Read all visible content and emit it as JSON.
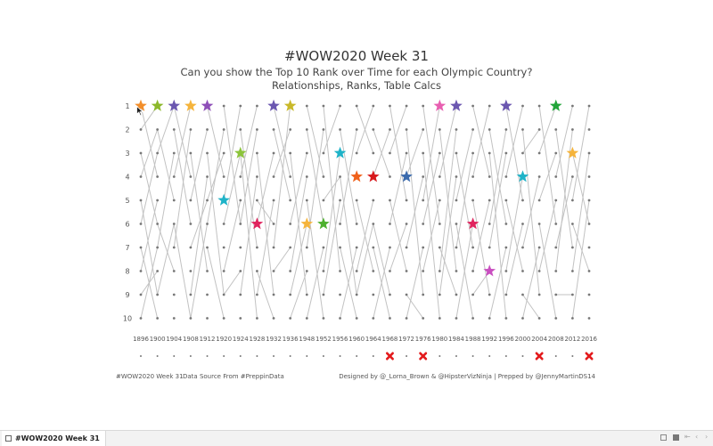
{
  "title": "#WOW2020 Week 31",
  "subtitle_line1": "Can you show the Top 10 Rank over Time for each Olympic Country?",
  "subtitle_line2": "Relationships, Ranks, Table Calcs",
  "footer": {
    "left": "#WOW2020 Week 31",
    "source": "Data Source From #PreppinData",
    "credits": "Designed by @_Lorna_Brown & @HipsterVizNinja | Prepped by @JennyMartinDS14"
  },
  "tab": {
    "label": "#WOW2020 Week 31"
  },
  "tab_controls": [
    "grid-view-icon",
    "filmstrip-view-icon",
    "first-page-icon",
    "previous-page-icon",
    "next-page-icon"
  ],
  "chart_data": {
    "type": "bump",
    "x": [
      1896,
      1900,
      1904,
      1908,
      1912,
      1920,
      1924,
      1928,
      1932,
      1936,
      1948,
      1952,
      1956,
      1960,
      1964,
      1968,
      1972,
      1976,
      1980,
      1984,
      1988,
      1992,
      1996,
      2000,
      2004,
      2008,
      2012,
      2016
    ],
    "y_ticks": [
      1,
      2,
      3,
      4,
      5,
      6,
      7,
      8,
      9,
      10
    ],
    "ylim": [
      1,
      10
    ],
    "y_reversed": true,
    "grid": false,
    "rank_marks": [
      [
        1,
        1,
        1,
        1,
        1,
        1,
        1,
        1,
        1,
        1,
        1,
        1,
        1,
        1,
        1,
        1,
        1,
        1,
        1,
        1,
        1,
        1,
        1,
        1,
        1,
        1,
        1,
        1
      ],
      [
        2,
        2,
        2,
        2,
        2,
        2,
        2,
        2,
        2,
        2,
        2,
        2,
        2,
        2,
        2,
        2,
        2,
        2,
        2,
        2,
        2,
        2,
        2,
        2,
        2,
        2,
        2,
        2
      ],
      [
        3,
        3,
        3,
        3,
        3,
        3,
        3,
        3,
        3,
        3,
        3,
        3,
        3,
        3,
        3,
        3,
        3,
        3,
        3,
        3,
        3,
        3,
        3,
        3,
        3,
        3,
        3,
        3
      ],
      [
        4,
        4,
        4,
        4,
        4,
        4,
        4,
        4,
        4,
        4,
        4,
        4,
        4,
        4,
        4,
        4,
        4,
        4,
        4,
        4,
        4,
        4,
        4,
        4,
        4,
        4,
        4,
        4
      ],
      [
        5,
        5,
        5,
        5,
        5,
        5,
        5,
        5,
        5,
        5,
        5,
        5,
        5,
        5,
        5,
        5,
        5,
        5,
        5,
        5,
        5,
        5,
        5,
        5,
        5,
        5,
        5,
        5
      ],
      [
        6,
        6,
        6,
        6,
        6,
        6,
        6,
        6,
        6,
        6,
        6,
        6,
        6,
        6,
        6,
        6,
        6,
        6,
        6,
        6,
        6,
        6,
        6,
        6,
        6,
        6,
        6,
        6
      ],
      [
        7,
        7,
        7,
        7,
        7,
        7,
        7,
        7,
        7,
        7,
        7,
        7,
        7,
        7,
        7,
        7,
        7,
        7,
        7,
        7,
        7,
        7,
        7,
        7,
        7,
        7,
        7,
        7
      ],
      [
        8,
        8,
        8,
        8,
        8,
        8,
        8,
        8,
        8,
        8,
        8,
        8,
        8,
        8,
        8,
        8,
        8,
        8,
        8,
        8,
        8,
        8,
        8,
        8,
        8,
        8,
        8,
        8
      ],
      [
        9,
        9,
        9,
        9,
        9,
        9,
        9,
        9,
        9,
        9,
        9,
        9,
        9,
        9,
        9,
        9,
        9,
        9,
        9,
        9,
        9,
        9,
        9,
        9,
        9,
        9,
        9,
        9
      ],
      [
        10,
        10,
        10,
        10,
        10,
        10,
        10,
        10,
        10,
        10,
        10,
        10,
        10,
        10,
        10,
        10,
        10,
        10,
        10,
        10,
        10,
        10,
        10,
        10,
        10,
        10,
        10,
        10
      ]
    ],
    "connector_lines": [
      [
        1896,
        1,
        1900,
        4
      ],
      [
        1896,
        2,
        1900,
        1
      ],
      [
        1896,
        3,
        1900,
        6
      ],
      [
        1896,
        4,
        1900,
        2
      ],
      [
        1896,
        5,
        1900,
        9
      ],
      [
        1896,
        6,
        1900,
        3
      ],
      [
        1896,
        7,
        1900,
        10
      ],
      [
        1896,
        8,
        1900,
        5
      ],
      [
        1896,
        9,
        1900,
        8
      ],
      [
        1896,
        10,
        1900,
        7
      ],
      [
        1900,
        2,
        1904,
        5
      ],
      [
        1900,
        3,
        1904,
        1
      ],
      [
        1900,
        6,
        1904,
        8
      ],
      [
        1900,
        7,
        1904,
        3
      ],
      [
        1900,
        9,
        1904,
        6
      ],
      [
        1904,
        1,
        1908,
        4
      ],
      [
        1904,
        2,
        1908,
        6
      ],
      [
        1904,
        4,
        1908,
        1
      ],
      [
        1904,
        6,
        1908,
        10
      ],
      [
        1904,
        7,
        1908,
        2
      ],
      [
        1908,
        3,
        1912,
        8
      ],
      [
        1908,
        5,
        1912,
        2
      ],
      [
        1908,
        7,
        1912,
        5
      ],
      [
        1908,
        9,
        1912,
        4
      ],
      [
        1908,
        10,
        1912,
        6
      ],
      [
        1912,
        1,
        1920,
        4
      ],
      [
        1912,
        3,
        1920,
        9
      ],
      [
        1912,
        5,
        1920,
        3
      ],
      [
        1912,
        6,
        1920,
        2
      ],
      [
        1912,
        7,
        1920,
        10
      ],
      [
        1920,
        1,
        1924,
        6
      ],
      [
        1920,
        5,
        1924,
        1
      ],
      [
        1920,
        6,
        1924,
        3
      ],
      [
        1920,
        8,
        1924,
        5
      ],
      [
        1920,
        9,
        1924,
        8
      ],
      [
        1924,
        2,
        1928,
        7
      ],
      [
        1924,
        3,
        1928,
        10
      ],
      [
        1924,
        4,
        1928,
        1
      ],
      [
        1924,
        6,
        1928,
        2
      ],
      [
        1924,
        9,
        1928,
        4
      ],
      [
        1928,
        3,
        1932,
        9
      ],
      [
        1928,
        5,
        1932,
        6
      ],
      [
        1928,
        6,
        1932,
        3
      ],
      [
        1928,
        8,
        1932,
        10
      ],
      [
        1928,
        9,
        1932,
        5
      ],
      [
        1932,
        1,
        1936,
        4
      ],
      [
        1932,
        2,
        1936,
        5
      ],
      [
        1932,
        4,
        1936,
        2
      ],
      [
        1932,
        7,
        1936,
        1
      ],
      [
        1932,
        8,
        1936,
        7
      ],
      [
        1936,
        3,
        1948,
        9
      ],
      [
        1936,
        6,
        1948,
        3
      ],
      [
        1936,
        8,
        1948,
        4
      ],
      [
        1936,
        9,
        1948,
        6
      ],
      [
        1936,
        10,
        1948,
        8
      ],
      [
        1948,
        1,
        1952,
        4
      ],
      [
        1948,
        2,
        1952,
        6
      ],
      [
        1948,
        5,
        1952,
        10
      ],
      [
        1948,
        7,
        1952,
        2
      ],
      [
        1948,
        10,
        1952,
        7
      ],
      [
        1952,
        1,
        1956,
        8
      ],
      [
        1952,
        3,
        1956,
        1
      ],
      [
        1952,
        5,
        1956,
        4
      ],
      [
        1952,
        8,
        1956,
        3
      ],
      [
        1952,
        9,
        1956,
        5
      ],
      [
        1956,
        2,
        1960,
        6
      ],
      [
        1956,
        4,
        1960,
        9
      ],
      [
        1956,
        6,
        1960,
        2
      ],
      [
        1956,
        7,
        1960,
        10
      ],
      [
        1956,
        10,
        1960,
        7
      ],
      [
        1960,
        1,
        1964,
        3
      ],
      [
        1960,
        3,
        1964,
        1
      ],
      [
        1960,
        5,
        1964,
        8
      ],
      [
        1960,
        8,
        1964,
        5
      ],
      [
        1960,
        9,
        1964,
        6
      ],
      [
        1964,
        2,
        1968,
        4
      ],
      [
        1964,
        4,
        1968,
        2
      ],
      [
        1964,
        6,
        1968,
        9
      ],
      [
        1964,
        7,
        1968,
        10
      ],
      [
        1964,
        10,
        1968,
        7
      ],
      [
        1968,
        1,
        1972,
        5
      ],
      [
        1968,
        3,
        1972,
        1
      ],
      [
        1968,
        5,
        1972,
        8
      ],
      [
        1968,
        6,
        1972,
        3
      ],
      [
        1968,
        8,
        1972,
        6
      ],
      [
        1972,
        2,
        1976,
        9
      ],
      [
        1972,
        4,
        1976,
        2
      ],
      [
        1972,
        7,
        1976,
        4
      ],
      [
        1972,
        9,
        1976,
        10
      ],
      [
        1972,
        10,
        1976,
        7
      ],
      [
        1976,
        1,
        1980,
        6
      ],
      [
        1976,
        3,
        1980,
        10
      ],
      [
        1976,
        5,
        1980,
        1
      ],
      [
        1976,
        6,
        1980,
        3
      ],
      [
        1976,
        8,
        1980,
        5
      ],
      [
        1980,
        2,
        1984,
        8
      ],
      [
        1980,
        4,
        1984,
        1
      ],
      [
        1980,
        7,
        1984,
        9
      ],
      [
        1980,
        8,
        1984,
        2
      ],
      [
        1980,
        9,
        1984,
        4
      ],
      [
        1984,
        3,
        1988,
        7
      ],
      [
        1984,
        5,
        1988,
        2
      ],
      [
        1984,
        6,
        1988,
        10
      ],
      [
        1984,
        7,
        1988,
        3
      ],
      [
        1984,
        10,
        1988,
        6
      ],
      [
        1988,
        1,
        1992,
        4
      ],
      [
        1988,
        4,
        1992,
        1
      ],
      [
        1988,
        5,
        1992,
        9
      ],
      [
        1988,
        8,
        1992,
        5
      ],
      [
        1988,
        9,
        1992,
        8
      ],
      [
        1992,
        2,
        1996,
        6
      ],
      [
        1992,
        3,
        1996,
        10
      ],
      [
        1992,
        6,
        1996,
        2
      ],
      [
        1992,
        7,
        1996,
        3
      ],
      [
        1992,
        10,
        1996,
        7
      ],
      [
        1996,
        1,
        2000,
        5
      ],
      [
        1996,
        4,
        2000,
        1
      ],
      [
        1996,
        5,
        2000,
        8
      ],
      [
        1996,
        8,
        2000,
        4
      ],
      [
        1996,
        9,
        2000,
        6
      ],
      [
        2000,
        2,
        2004,
        9
      ],
      [
        2000,
        3,
        2004,
        2
      ],
      [
        2000,
        7,
        2004,
        4
      ],
      [
        2000,
        9,
        2004,
        10
      ],
      [
        2000,
        10,
        2004,
        7
      ],
      [
        2004,
        1,
        2008,
        6
      ],
      [
        2004,
        3,
        2008,
        1
      ],
      [
        2004,
        5,
        2008,
        3
      ],
      [
        2004,
        6,
        2008,
        10
      ],
      [
        2004,
        8,
        2008,
        5
      ],
      [
        2008,
        2,
        2012,
        7
      ],
      [
        2008,
        4,
        2012,
        1
      ],
      [
        2008,
        7,
        2012,
        4
      ],
      [
        2008,
        8,
        2012,
        2
      ],
      [
        2008,
        9,
        2012,
        9
      ],
      [
        2012,
        3,
        2016,
        6
      ],
      [
        2012,
        5,
        2016,
        1
      ],
      [
        2012,
        6,
        2016,
        8
      ],
      [
        2012,
        8,
        2016,
        3
      ],
      [
        2012,
        10,
        2016,
        5
      ]
    ],
    "stars": [
      {
        "x": 1896,
        "rank": 1,
        "color": "#f28e2b"
      },
      {
        "x": 1900,
        "rank": 1,
        "color": "#8cb82b"
      },
      {
        "x": 1904,
        "rank": 1,
        "color": "#6b57b0"
      },
      {
        "x": 1908,
        "rank": 1,
        "color": "#f5b43c"
      },
      {
        "x": 1912,
        "rank": 1,
        "color": "#8e4fb8"
      },
      {
        "x": 1920,
        "rank": 5,
        "color": "#1fb3c8"
      },
      {
        "x": 1924,
        "rank": 3,
        "color": "#8cc43c"
      },
      {
        "x": 1928,
        "rank": 6,
        "color": "#e0245e"
      },
      {
        "x": 1932,
        "rank": 1,
        "color": "#6b57b0"
      },
      {
        "x": 1936,
        "rank": 1,
        "color": "#c9b92a"
      },
      {
        "x": 1948,
        "rank": 6,
        "color": "#f5b43c"
      },
      {
        "x": 1952,
        "rank": 6,
        "color": "#4db02e"
      },
      {
        "x": 1956,
        "rank": 3,
        "color": "#1fb3c8"
      },
      {
        "x": 1960,
        "rank": 4,
        "color": "#f0611a"
      },
      {
        "x": 1964,
        "rank": 4,
        "color": "#d7191c"
      },
      {
        "x": 1972,
        "rank": 4,
        "color": "#3a6aad"
      },
      {
        "x": 1980,
        "rank": 1,
        "color": "#e85fb1"
      },
      {
        "x": 1984,
        "rank": 1,
        "color": "#6b57b0"
      },
      {
        "x": 1988,
        "rank": 6,
        "color": "#e0245e"
      },
      {
        "x": 1992,
        "rank": 8,
        "color": "#c94fc0"
      },
      {
        "x": 1996,
        "rank": 1,
        "color": "#6b57b0"
      },
      {
        "x": 2000,
        "rank": 4,
        "color": "#1fb3c8"
      },
      {
        "x": 2008,
        "rank": 1,
        "color": "#22a53a"
      },
      {
        "x": 2012,
        "rank": 3,
        "color": "#f5b43c"
      }
    ],
    "host_marker_row": {
      "cross_years": [
        1968,
        1976,
        2004,
        2016
      ],
      "cross_color": "#e31a1c",
      "dot_color": "#777777"
    }
  }
}
